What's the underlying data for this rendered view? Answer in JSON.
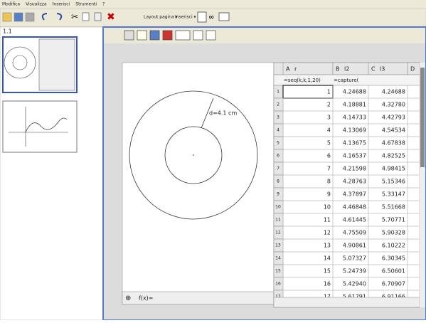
{
  "menu": [
    "Modifica",
    "Visualizza",
    "Inserisci",
    "Strumenti",
    "?"
  ],
  "toolbar": [
    "Layout pagina ▾",
    "Inserisci ▾"
  ],
  "page_label": "1.1",
  "graph": {
    "annotation": "d=4.1 cm",
    "entry": "f(x)="
  },
  "sheet": {
    "columns": [
      [
        "A",
        "r"
      ],
      [
        "B",
        "l2"
      ],
      [
        "C",
        "l3"
      ],
      [
        "D",
        ""
      ]
    ],
    "formulas": [
      "=seq(k,k,1,20)",
      "=capture("
    ],
    "rows": [
      [
        "1",
        "1",
        "4.24688",
        "4.24688"
      ],
      [
        "2",
        "2",
        "4.18881",
        "4.32780"
      ],
      [
        "3",
        "3",
        "4.14733",
        "4.42793"
      ],
      [
        "4",
        "4",
        "4.13069",
        "4.54534"
      ],
      [
        "5",
        "5",
        "4.13675",
        "4.67838"
      ],
      [
        "6",
        "6",
        "4.16537",
        "4.82525"
      ],
      [
        "7",
        "7",
        "4.21598",
        "4.98415"
      ],
      [
        "8",
        "8",
        "4.28763",
        "5.15346"
      ],
      [
        "9",
        "9",
        "4.37897",
        "5.33147"
      ],
      [
        "10",
        "10",
        "4.46848",
        "5.51668"
      ],
      [
        "11",
        "11",
        "4.61445",
        "5.70771"
      ],
      [
        "12",
        "12",
        "4.75509",
        "5.90328"
      ],
      [
        "13",
        "13",
        "4.90861",
        "6.10222"
      ],
      [
        "14",
        "14",
        "5.07327",
        "6.30345"
      ],
      [
        "15",
        "15",
        "5.24739",
        "6.50601"
      ],
      [
        "16",
        "16",
        "5.42940",
        "6.70907"
      ],
      [
        "17",
        "17",
        "5.61791",
        "6.91166"
      ]
    ]
  }
}
